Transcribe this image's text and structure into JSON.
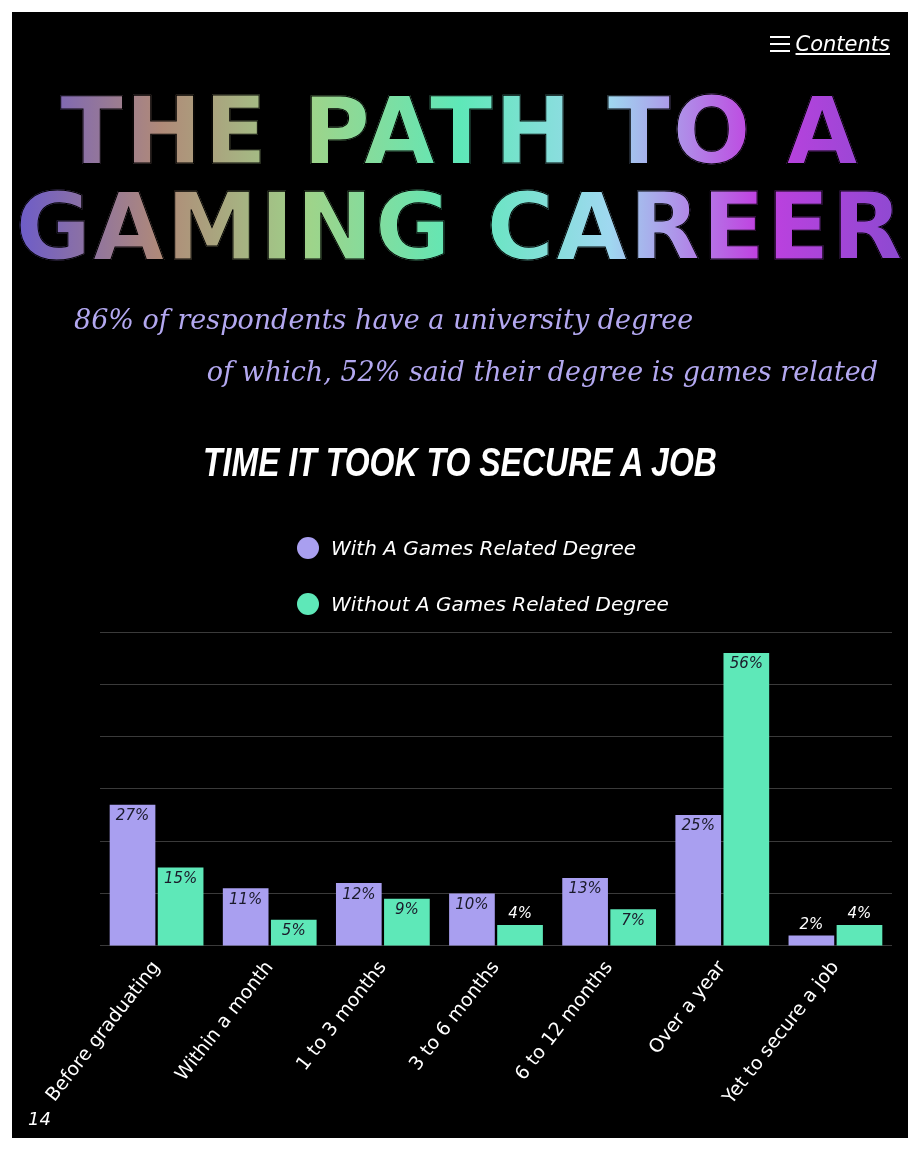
{
  "chart_data": {
    "type": "bar",
    "title": "THE PATH TO A GAMING CAREER",
    "subtitle": "TIME IT TOOK TO SECURE A JOB",
    "annotations": [
      "Contents",
      "86% of respondents have a university degree",
      "of which, 52% said their degree is games related",
      "14"
    ],
    "categories": [
      "Before graduating",
      "Within a month",
      "1 to 3 months",
      "3 to 6 months",
      "6 to 12 months",
      "Over a year",
      "Yet to secure a job"
    ],
    "series": [
      {
        "name": "With A Games Related Degree",
        "color": "#a99ff0",
        "values": [
          27,
          11,
          12,
          10,
          13,
          25,
          2
        ],
        "value_labels": [
          "27%",
          "11%",
          "12%",
          "10%",
          "13%",
          "25%",
          "2%"
        ]
      },
      {
        "name": "Without A Games Related Degree",
        "color": "#5ee8b8",
        "values": [
          15,
          5,
          9,
          4,
          7,
          56,
          4
        ],
        "value_labels": [
          "15%",
          "5%",
          "9%",
          "4%",
          "7%",
          "56%",
          "4%"
        ]
      }
    ],
    "ylim": [
      0,
      60
    ],
    "yticks": [
      0,
      10,
      20,
      30,
      40,
      50,
      60
    ],
    "tick_labels": "x",
    "grid": "y",
    "legend": "top"
  }
}
